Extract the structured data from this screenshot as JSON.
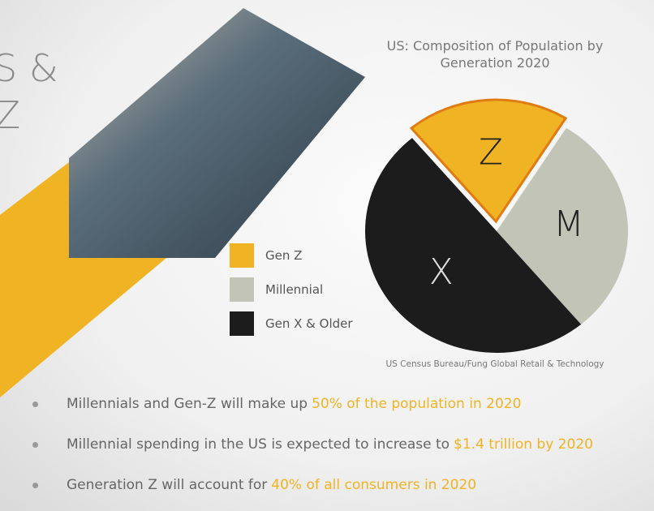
{
  "chart_data": {
    "type": "pie",
    "title": "US: Composition of Population by Generation 2020",
    "categories": [
      "Gen Z",
      "Millennial",
      "Gen X & Older"
    ],
    "labels": [
      "Z",
      "M",
      "X"
    ],
    "values": [
      20,
      30,
      50
    ],
    "colors": [
      "#f0b323",
      "#c3c4b8",
      "#1c1c1c"
    ],
    "source": "US Census Bureau/Fung Global Retail & Technology"
  },
  "slide": {
    "title_fragments": [
      "S &",
      "IZ"
    ],
    "bullets": [
      {
        "text": "Millennials and Gen-Z will make up",
        "highlight": "50% of the population in 2020"
      },
      {
        "text": "Millennial spending in the US is expected to increase to",
        "highlight": "$1.4 trillion by 2020"
      },
      {
        "text": "Generation Z will account for",
        "highlight": "40% of all consumers in 2020"
      }
    ]
  }
}
